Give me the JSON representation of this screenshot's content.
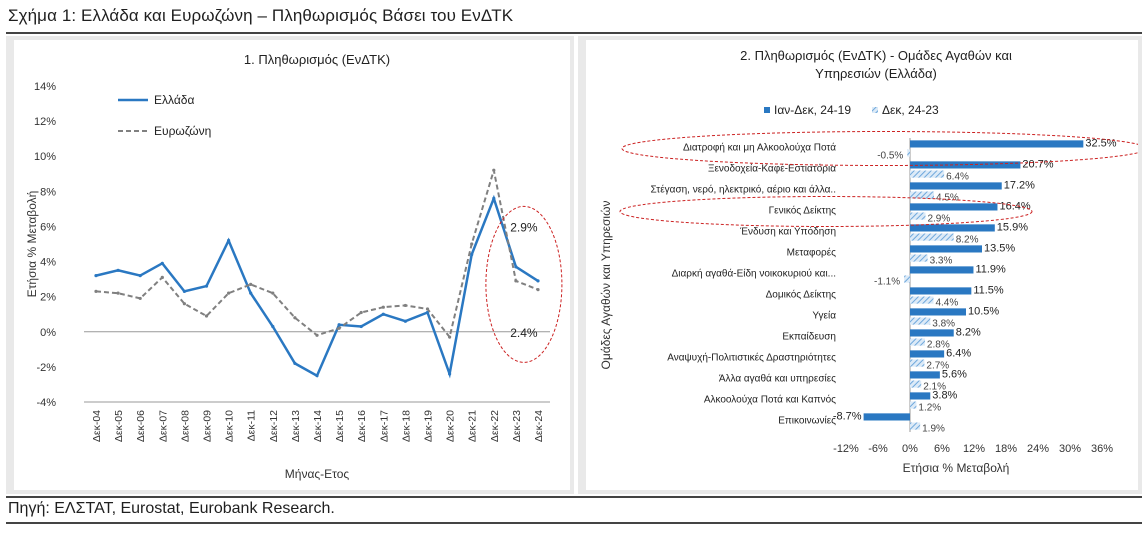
{
  "figure_title": "Σχήμα 1: Ελλάδα και Ευρωζώνη – Πληθωρισμός Βάσει του ΕνΔΤΚ",
  "source": "Πηγή: ΕΛΣΤΑΤ, Eurostat, Eurobank Research.",
  "colors": {
    "greece": "#2a78c2",
    "eurozone": "#808080",
    "bar_main": "#2a78c2",
    "bar_hatch": "#6fa8dc",
    "highlight": "#cc2222"
  },
  "chart_data": [
    {
      "type": "line",
      "title": "1. Πληθωρισμός (ΕνΔΤΚ)",
      "xlabel": "Μήνας-Ετος",
      "ylabel": "Ετήσια % Μεταβολή",
      "ylim": [
        -4,
        14
      ],
      "yticks": [
        "-4%",
        "-2%",
        "0%",
        "2%",
        "4%",
        "6%",
        "8%",
        "10%",
        "12%",
        "14%"
      ],
      "categories": [
        "Δεκ-04",
        "Δεκ-05",
        "Δεκ-06",
        "Δεκ-07",
        "Δεκ-08",
        "Δεκ-09",
        "Δεκ-10",
        "Δεκ-11",
        "Δεκ-12",
        "Δεκ-13",
        "Δεκ-14",
        "Δεκ-15",
        "Δεκ-16",
        "Δεκ-17",
        "Δεκ-18",
        "Δεκ-19",
        "Δεκ-20",
        "Δεκ-21",
        "Δεκ-22",
        "Δεκ-23",
        "Δεκ-24"
      ],
      "series": [
        {
          "name": "Ελλάδα",
          "style": "solid",
          "values": [
            3.2,
            3.5,
            3.2,
            3.9,
            2.3,
            2.6,
            5.2,
            2.2,
            0.3,
            -1.8,
            -2.5,
            0.4,
            0.3,
            1.0,
            0.6,
            1.1,
            -2.4,
            4.4,
            7.6,
            3.7,
            2.9
          ]
        },
        {
          "name": "Ευρωζώνη",
          "style": "dashed",
          "values": [
            2.3,
            2.2,
            1.9,
            3.1,
            1.6,
            0.9,
            2.2,
            2.7,
            2.2,
            0.8,
            -0.2,
            0.2,
            1.1,
            1.4,
            1.5,
            1.3,
            -0.3,
            5.0,
            9.2,
            2.9,
            2.4
          ]
        }
      ],
      "annotations": [
        "2.9%",
        "2.4%"
      ]
    },
    {
      "type": "bar",
      "orientation": "horizontal",
      "title": "2. Πληθωρισμός (ΕνΔΤΚ) - Ομάδες Αγαθών και Υπηρεσιών (Ελλάδα)",
      "xlabel": "Ετήσια % Μεταβολή",
      "ylabel": "Ομάδες Αγαθών και Υπηρεσιών",
      "xlim": [
        -12,
        36
      ],
      "xticks": [
        "-12%",
        "-6%",
        "0%",
        "6%",
        "12%",
        "18%",
        "24%",
        "30%",
        "36%"
      ],
      "categories": [
        "Διατροφή και μη Αλκοολούχα Ποτά",
        "Ξενοδοχεία-Καφέ-Εστιατόρια",
        "Στέγαση, νερό, ηλεκτρικό, αέριο και άλλα..",
        "Γενικός Δείκτης",
        "Ένδυση και Υπόδηση",
        "Μεταφορές",
        "Διαρκή αγαθά-Είδη νοικοκυριού και...",
        "Δομικός Δείκτης",
        "Υγεία",
        "Εκπαίδευση",
        "Αναψυχή-Πολιτιστικές Δραστηριότητες",
        "Άλλα αγαθά και υπηρεσίες",
        "Αλκοολούχα Ποτά και Καπνός",
        "Επικοινωνίες"
      ],
      "series": [
        {
          "name": "Ιαν-Δεκ, 24-19",
          "values": [
            32.5,
            20.7,
            17.2,
            16.4,
            15.9,
            13.5,
            11.9,
            11.5,
            10.5,
            8.2,
            6.4,
            5.6,
            3.8,
            -8.7
          ],
          "labels": [
            "32.5%",
            "20.7%",
            "17.2%",
            "16.4%",
            "15.9%",
            "13.5%",
            "11.9%",
            "11.5%",
            "10.5%",
            "8.2%",
            "6.4%",
            "5.6%",
            "3.8%",
            "-8.7%"
          ]
        },
        {
          "name": "Δεκ, 24-23",
          "values": [
            -0.5,
            6.4,
            4.5,
            2.9,
            8.2,
            3.3,
            -1.1,
            4.4,
            3.8,
            2.8,
            2.7,
            2.1,
            1.2,
            1.9
          ],
          "labels": [
            "-0.5%",
            "6.4%",
            "4.5%",
            "2.9%",
            "8.2%",
            "3.3%",
            "-1.1%",
            "4.4%",
            "3.8%",
            "2.8%",
            "2.7%",
            "2.1%",
            "1.2%",
            "1.9%"
          ]
        }
      ]
    }
  ]
}
